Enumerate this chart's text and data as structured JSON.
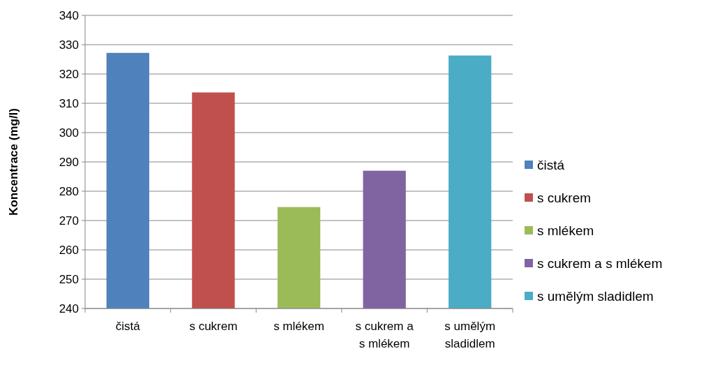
{
  "chart_data": {
    "type": "bar",
    "ylabel": "Koncentrace (mg/l)",
    "categories": [
      "čistá",
      "s cukrem",
      "s mlékem",
      "s cukrem a s mlékem",
      "s umělým sladidlem"
    ],
    "series": [
      {
        "name": "čistá",
        "color": "#4f81bd",
        "values": [
          327.2,
          null,
          null,
          null,
          null
        ]
      },
      {
        "name": "s cukrem",
        "color": "#c0504d",
        "values": [
          null,
          313.7,
          null,
          null,
          null
        ]
      },
      {
        "name": "s mlékem",
        "color": "#9bbb59",
        "values": [
          null,
          null,
          274.6,
          null,
          null
        ]
      },
      {
        "name": "s cukrem a s mlékem",
        "color": "#8064a2",
        "values": [
          null,
          null,
          null,
          287.0,
          null
        ]
      },
      {
        "name": "s umělým sladidlem",
        "color": "#4bacc6",
        "values": [
          null,
          null,
          null,
          null,
          326.3
        ]
      }
    ],
    "ylim": [
      240,
      340
    ],
    "yticks": [
      240,
      250,
      260,
      270,
      280,
      290,
      300,
      310,
      320,
      330,
      340
    ],
    "grid": "y",
    "legend": "right"
  }
}
